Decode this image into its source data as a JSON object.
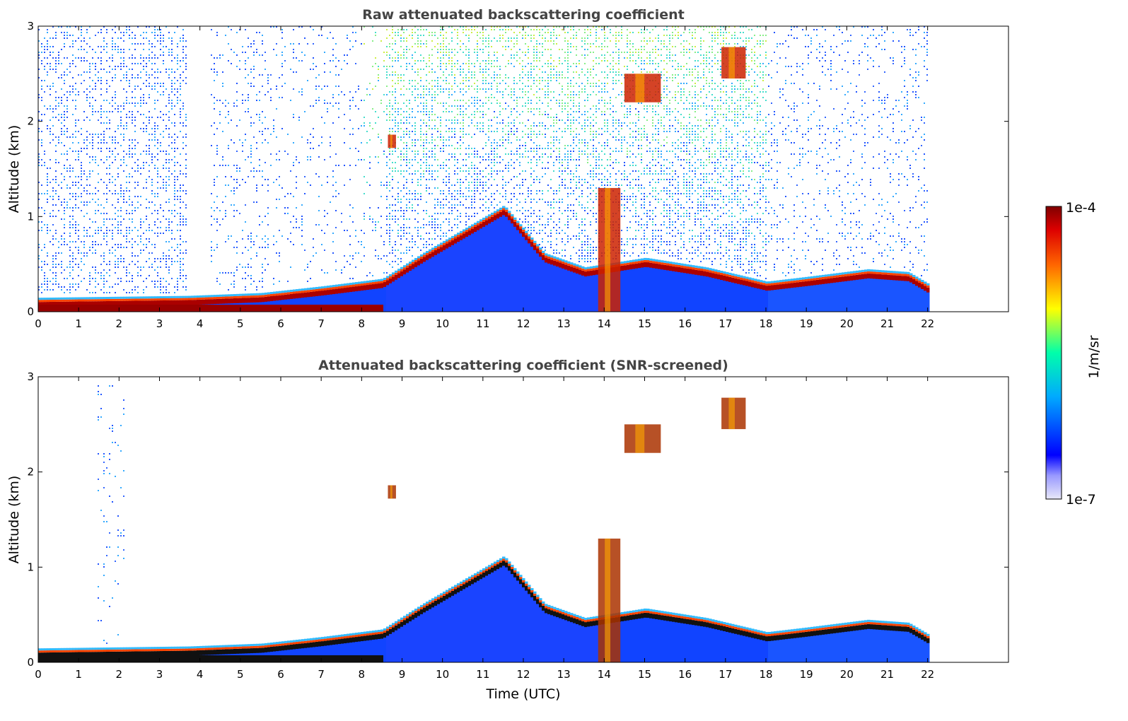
{
  "chart_data": [
    {
      "type": "heatmap",
      "title": "Raw attenuated backscattering coefficient",
      "xlabel": "",
      "ylabel": "Altitude (km)",
      "xlim": [
        0,
        24
      ],
      "ylim": [
        0,
        3
      ],
      "xticks": [
        "0",
        "1",
        "2",
        "3",
        "4",
        "5",
        "6",
        "7",
        "8",
        "9",
        "10",
        "11",
        "12",
        "13",
        "14",
        "15",
        "16",
        "17",
        "18",
        "19",
        "20",
        "21",
        "22"
      ],
      "yticks": [
        "0",
        "1",
        "2",
        "3"
      ],
      "data_end_time": 22.1,
      "aerosol_layer_top_km": [
        {
          "t": 0,
          "h": 0.08
        },
        {
          "t": 3.7,
          "h": 0.1
        },
        {
          "t": 5.5,
          "h": 0.13
        },
        {
          "t": 7,
          "h": 0.2
        },
        {
          "t": 8.5,
          "h": 0.28
        },
        {
          "t": 9.5,
          "h": 0.55
        },
        {
          "t": 10.5,
          "h": 0.8
        },
        {
          "t": 11.5,
          "h": 1.05
        },
        {
          "t": 12.5,
          "h": 0.55
        },
        {
          "t": 13.5,
          "h": 0.4
        },
        {
          "t": 15,
          "h": 0.5
        },
        {
          "t": 16.5,
          "h": 0.4
        },
        {
          "t": 18,
          "h": 0.25
        },
        {
          "t": 19,
          "h": 0.3
        },
        {
          "t": 20.5,
          "h": 0.38
        },
        {
          "t": 21.5,
          "h": 0.35
        },
        {
          "t": 22.1,
          "h": 0.2
        }
      ],
      "cloud_features": [
        {
          "t0": 8.65,
          "t1": 8.85,
          "h0": 1.72,
          "h1": 1.86
        },
        {
          "t0": 14.5,
          "t1": 15.4,
          "h0": 2.2,
          "h1": 2.5
        },
        {
          "t0": 16.9,
          "t1": 17.5,
          "h0": 2.45,
          "h1": 2.78
        },
        {
          "t0": 13.85,
          "t1": 14.4,
          "h0": 0.0,
          "h1": 1.3
        }
      ]
    },
    {
      "type": "heatmap",
      "title": "Attenuated backscattering coefficient (SNR-screened)",
      "xlabel": "Time (UTC)",
      "ylabel": "Altitude (km)",
      "xlim": [
        0,
        24
      ],
      "ylim": [
        0,
        3
      ],
      "xticks": [
        "0",
        "1",
        "2",
        "3",
        "4",
        "5",
        "6",
        "7",
        "8",
        "9",
        "10",
        "11",
        "12",
        "13",
        "14",
        "15",
        "16",
        "17",
        "18",
        "19",
        "20",
        "21",
        "22"
      ],
      "yticks": [
        "0",
        "1",
        "2",
        "3"
      ],
      "data_end_time": 22.1
    }
  ],
  "colorbar": {
    "label": "1/m/sr",
    "max_label": "1e-4",
    "min_label": "1e-7",
    "scale": "log",
    "colormap": [
      "#e8e8f8",
      "#0000ff",
      "#00aaff",
      "#00ffaa",
      "#ffff00",
      "#ff8800",
      "#ff0000",
      "#800000"
    ]
  }
}
